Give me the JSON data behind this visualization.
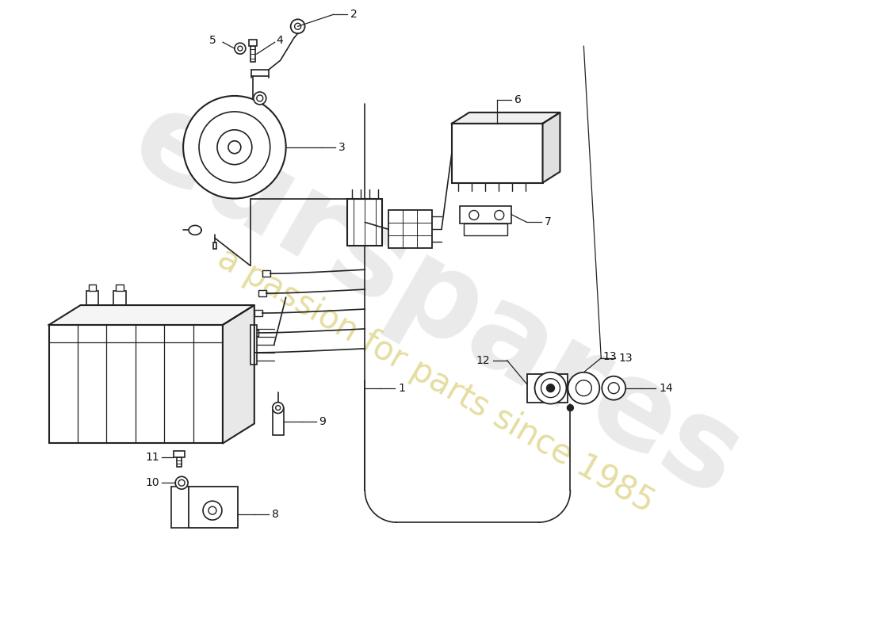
{
  "bg_color": "#ffffff",
  "line_color": "#222222",
  "wm_text1": "eurspares",
  "wm_text2": "a passion for parts since 1985",
  "wm_color1": "#bbbbbb",
  "wm_color2": "#ccbb44",
  "fig_w": 11.0,
  "fig_h": 8.0,
  "dpi": 100
}
